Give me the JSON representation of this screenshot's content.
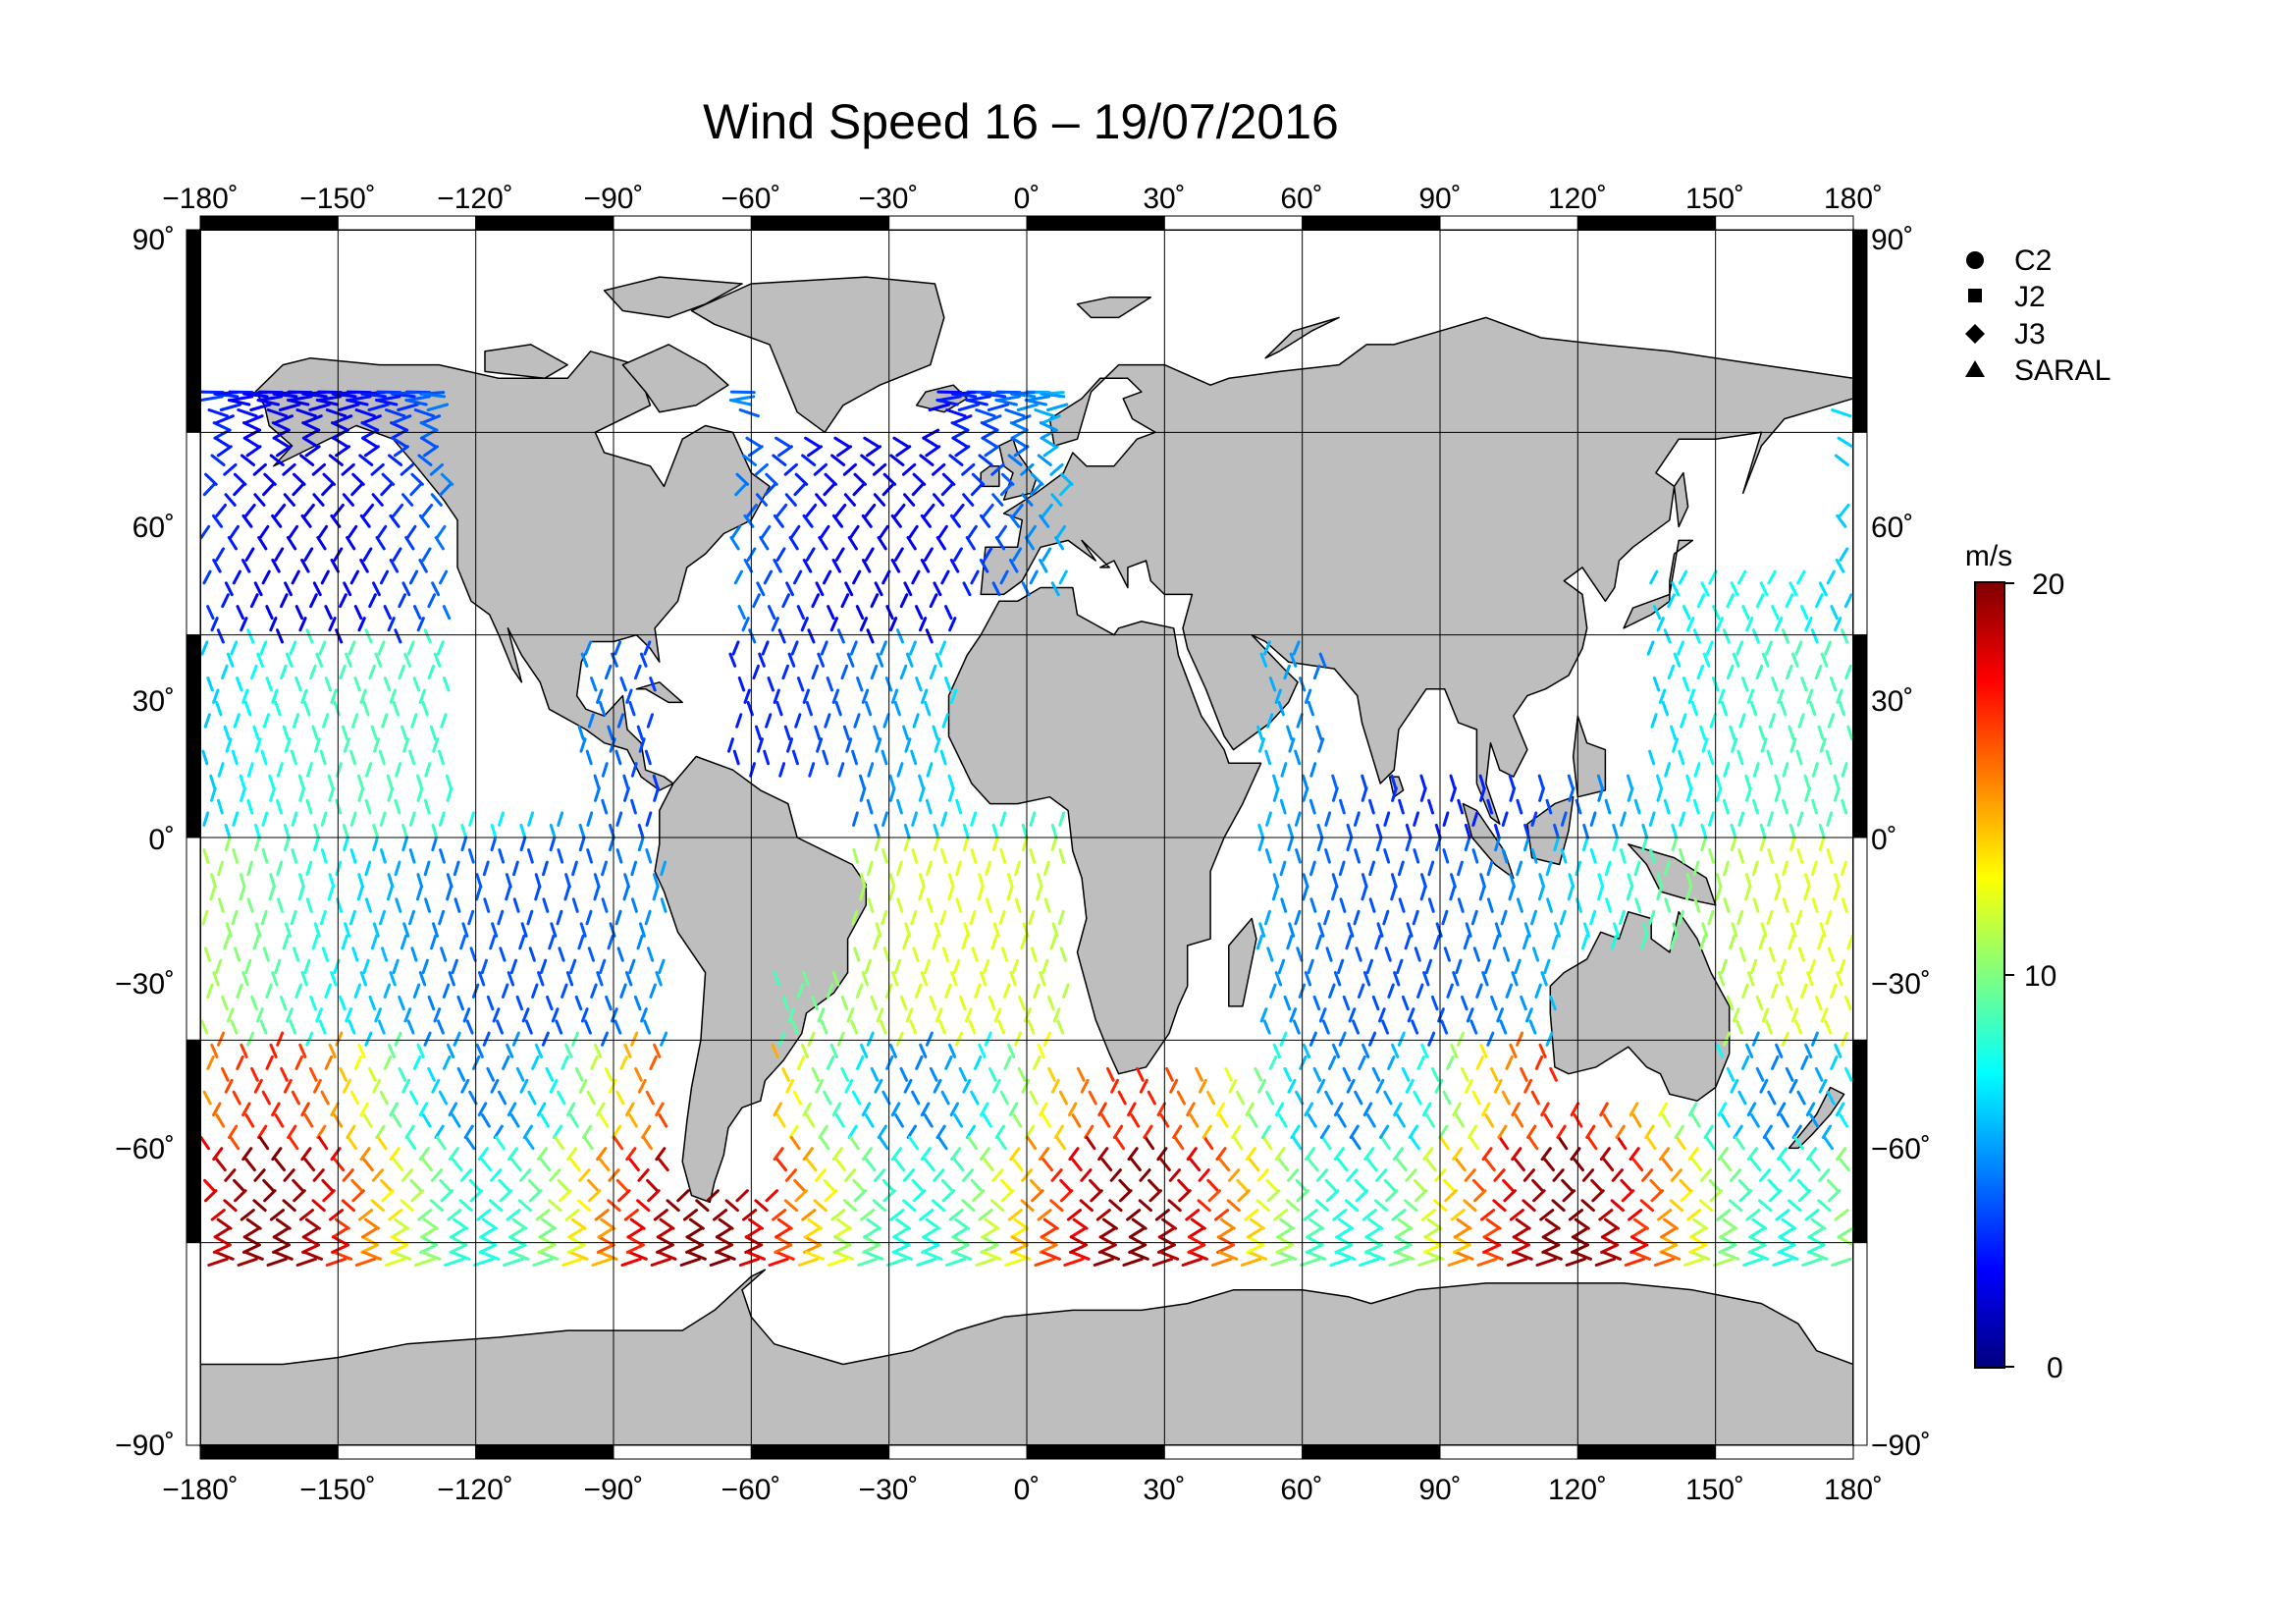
{
  "title": "Wind Speed 16 – 19/07/2016",
  "map": {
    "projection": "equirectangular",
    "lon_range": [
      -180,
      180
    ],
    "lat_range": [
      -90,
      90
    ],
    "grid": true,
    "land_color": "#bebebe",
    "ocean_color": "#ffffff",
    "lon_ticks": [
      "−180˚",
      "−150˚",
      "−120˚",
      "−90˚",
      "−60˚",
      "−30˚",
      "0˚",
      "30˚",
      "60˚",
      "90˚",
      "120˚",
      "150˚",
      "180˚"
    ],
    "lat_ticks_left": [
      "90˚",
      "60˚",
      "30˚",
      "0˚",
      "−30˚",
      "−60˚",
      "−90˚"
    ],
    "lat_ticks_right": [
      "90˚",
      "60˚",
      "30˚",
      "0˚",
      "−30˚",
      "−60˚",
      "−90˚"
    ]
  },
  "legend": {
    "placement": "top-right",
    "items": [
      {
        "label": "C2",
        "marker": "circle"
      },
      {
        "label": "J2",
        "marker": "square"
      },
      {
        "label": "J3",
        "marker": "diamond"
      },
      {
        "label": "SARAL",
        "marker": "triangle"
      }
    ]
  },
  "colorbar": {
    "unit": "m/s",
    "min_label": "0",
    "mid_label": "10",
    "max_label": "20",
    "range": [
      0,
      20
    ],
    "colormap": "jet"
  },
  "chart_data": {
    "type": "scatter",
    "title": "Wind Speed 16 – 19/07/2016",
    "xlabel": "",
    "ylabel": "",
    "xlim": [
      -180,
      180
    ],
    "ylim": [
      -90,
      90
    ],
    "grid": true,
    "value_unit": "m/s",
    "value_range": [
      0,
      20
    ],
    "legend_placement": "top-right",
    "series_names": [
      "C2",
      "J2",
      "J3",
      "SARAL"
    ],
    "wind_speed_by_latitude_band_approx": [
      {
        "band": "60N-75N",
        "approx_ms": 7
      },
      {
        "band": "30N-60N",
        "approx_ms": 6
      },
      {
        "band": "0-30N",
        "approx_ms": 6
      },
      {
        "band": "0-30S",
        "approx_ms": 9
      },
      {
        "band": "30S-50S",
        "approx_ms": 12
      },
      {
        "band": "50S-66S",
        "approx_ms": 14
      }
    ]
  }
}
